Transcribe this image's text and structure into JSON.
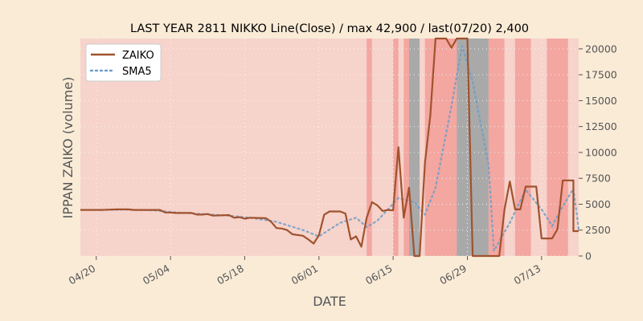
{
  "colors": {
    "background": "#faebd7",
    "zaiko": "#a0522d",
    "sma5": "#6c9ec8",
    "band_light": "#f6d3cb",
    "band_strong": "#f4a6a0",
    "band_gray": "#a9a9a9",
    "grid": "#ffffff",
    "axis_text": "#555555"
  },
  "chart_data": {
    "type": "line",
    "title": "LAST YEAR 2811 NIKKO Line(Close) / max 42,900 / last(07/20) 2,400",
    "xlabel": "DATE",
    "ylabel": "IPPAN ZAIKO (volume)",
    "x_start": "2023-04-17",
    "x_end": "2023-07-20",
    "ylim": [
      0,
      21000
    ],
    "y_ticks": [
      0,
      2500,
      5000,
      7500,
      10000,
      12500,
      15000,
      17500,
      20000
    ],
    "y_tick_labels": [
      "0",
      "2500",
      "5000",
      "7500",
      "10000",
      "12500",
      "15000",
      "17500",
      "20000"
    ],
    "x_ticks": [
      "2023-04-20",
      "2023-05-04",
      "2023-05-18",
      "2023-06-01",
      "2023-06-15",
      "2023-06-29",
      "2023-07-13"
    ],
    "x_tick_labels": [
      "04/20",
      "05/04",
      "05/18",
      "06/01",
      "06/15",
      "06/29",
      "07/13"
    ],
    "grid": true,
    "legend_position": "top-left",
    "series": [
      {
        "name": "ZAIKO",
        "style": "solid",
        "points": [
          [
            "2023-04-17",
            4450
          ],
          [
            "2023-04-18",
            4450
          ],
          [
            "2023-04-19",
            4450
          ],
          [
            "2023-04-20",
            4450
          ],
          [
            "2023-04-21",
            4450
          ],
          [
            "2023-04-24",
            4500
          ],
          [
            "2023-04-25",
            4500
          ],
          [
            "2023-04-26",
            4500
          ],
          [
            "2023-04-27",
            4450
          ],
          [
            "2023-04-28",
            4450
          ],
          [
            "2023-05-01",
            4450
          ],
          [
            "2023-05-02",
            4450
          ],
          [
            "2023-05-03",
            4200
          ],
          [
            "2023-05-04",
            4200
          ],
          [
            "2023-05-05",
            4150
          ],
          [
            "2023-05-08",
            4150
          ],
          [
            "2023-05-09",
            4000
          ],
          [
            "2023-05-10",
            4000
          ],
          [
            "2023-05-11",
            4050
          ],
          [
            "2023-05-12",
            3900
          ],
          [
            "2023-05-15",
            3950
          ],
          [
            "2023-05-16",
            3700
          ],
          [
            "2023-05-17",
            3750
          ],
          [
            "2023-05-18",
            3600
          ],
          [
            "2023-05-19",
            3700
          ],
          [
            "2023-05-22",
            3650
          ],
          [
            "2023-05-23",
            3300
          ],
          [
            "2023-05-24",
            2700
          ],
          [
            "2023-05-25",
            2650
          ],
          [
            "2023-05-26",
            2500
          ],
          [
            "2023-05-27",
            2100
          ],
          [
            "2023-05-29",
            1950
          ],
          [
            "2023-05-30",
            1600
          ],
          [
            "2023-05-31",
            1200
          ],
          [
            "2023-06-01",
            2000
          ],
          [
            "2023-06-02",
            4000
          ],
          [
            "2023-06-03",
            4300
          ],
          [
            "2023-06-05",
            4300
          ],
          [
            "2023-06-06",
            4100
          ],
          [
            "2023-06-07",
            1600
          ],
          [
            "2023-06-08",
            1900
          ],
          [
            "2023-06-09",
            900
          ],
          [
            "2023-06-10",
            3700
          ],
          [
            "2023-06-11",
            5200
          ],
          [
            "2023-06-12",
            4900
          ],
          [
            "2023-06-13",
            4350
          ],
          [
            "2023-06-14",
            4450
          ],
          [
            "2023-06-15",
            4400
          ],
          [
            "2023-06-16",
            10500
          ],
          [
            "2023-06-17",
            3700
          ],
          [
            "2023-06-18",
            6600
          ],
          [
            "2023-06-19",
            0
          ],
          [
            "2023-06-20",
            0
          ],
          [
            "2023-06-21",
            9000
          ],
          [
            "2023-06-22",
            13500
          ],
          [
            "2023-06-23",
            21000
          ],
          [
            "2023-06-25",
            21000
          ],
          [
            "2023-06-26",
            20100
          ],
          [
            "2023-06-27",
            21000
          ],
          [
            "2023-06-28",
            21000
          ],
          [
            "2023-06-29",
            21000
          ],
          [
            "2023-06-30",
            0
          ],
          [
            "2023-07-03",
            0
          ],
          [
            "2023-07-04",
            0
          ],
          [
            "2023-07-05",
            0
          ],
          [
            "2023-07-06",
            4500
          ],
          [
            "2023-07-07",
            7200
          ],
          [
            "2023-07-08",
            4500
          ],
          [
            "2023-07-09",
            4500
          ],
          [
            "2023-07-10",
            6700
          ],
          [
            "2023-07-11",
            6700
          ],
          [
            "2023-07-12",
            6700
          ],
          [
            "2023-07-13",
            1700
          ],
          [
            "2023-07-14",
            1700
          ],
          [
            "2023-07-15",
            1700
          ],
          [
            "2023-07-16",
            2600
          ],
          [
            "2023-07-17",
            7300
          ],
          [
            "2023-07-18",
            7300
          ],
          [
            "2023-07-19",
            7300
          ],
          [
            "2023-07-19",
            2400
          ],
          [
            "2023-07-20",
            2400
          ]
        ]
      },
      {
        "name": "SMA5",
        "style": "dotted",
        "points": [
          [
            "2023-04-21",
            4450
          ],
          [
            "2023-04-26",
            4480
          ],
          [
            "2023-05-01",
            4400
          ],
          [
            "2023-05-05",
            4200
          ],
          [
            "2023-05-10",
            4050
          ],
          [
            "2023-05-15",
            3900
          ],
          [
            "2023-05-19",
            3700
          ],
          [
            "2023-05-24",
            3300
          ],
          [
            "2023-05-29",
            2500
          ],
          [
            "2023-06-01",
            1900
          ],
          [
            "2023-06-05",
            3200
          ],
          [
            "2023-06-08",
            3700
          ],
          [
            "2023-06-10",
            2800
          ],
          [
            "2023-06-12",
            3400
          ],
          [
            "2023-06-16",
            5600
          ],
          [
            "2023-06-19",
            5200
          ],
          [
            "2023-06-21",
            4000
          ],
          [
            "2023-06-23",
            6600
          ],
          [
            "2023-06-26",
            14500
          ],
          [
            "2023-06-28",
            20300
          ],
          [
            "2023-06-30",
            16800
          ],
          [
            "2023-07-03",
            8800
          ],
          [
            "2023-07-04",
            500
          ],
          [
            "2023-07-07",
            3200
          ],
          [
            "2023-07-10",
            6400
          ],
          [
            "2023-07-13",
            4500
          ],
          [
            "2023-07-15",
            2900
          ],
          [
            "2023-07-17",
            4800
          ],
          [
            "2023-07-19",
            6500
          ],
          [
            "2023-07-20",
            2600
          ]
        ]
      }
    ],
    "bands": [
      {
        "start": "2023-04-17",
        "end": "2023-06-10",
        "tone": "light"
      },
      {
        "start": "2023-06-10",
        "end": "2023-06-11",
        "tone": "strong"
      },
      {
        "start": "2023-06-11",
        "end": "2023-06-15",
        "tone": "light"
      },
      {
        "start": "2023-06-15",
        "end": "2023-06-16",
        "tone": "strong"
      },
      {
        "start": "2023-06-16",
        "end": "2023-06-17",
        "tone": "light"
      },
      {
        "start": "2023-06-17",
        "end": "2023-06-18",
        "tone": "strong"
      },
      {
        "start": "2023-06-18",
        "end": "2023-06-20",
        "tone": "gray"
      },
      {
        "start": "2023-06-20",
        "end": "2023-06-21",
        "tone": "light"
      },
      {
        "start": "2023-06-21",
        "end": "2023-06-27",
        "tone": "strong"
      },
      {
        "start": "2023-06-27",
        "end": "2023-07-03",
        "tone": "gray"
      },
      {
        "start": "2023-07-03",
        "end": "2023-07-06",
        "tone": "strong"
      },
      {
        "start": "2023-07-06",
        "end": "2023-07-08",
        "tone": "light"
      },
      {
        "start": "2023-07-08",
        "end": "2023-07-11",
        "tone": "strong"
      },
      {
        "start": "2023-07-11",
        "end": "2023-07-14",
        "tone": "light"
      },
      {
        "start": "2023-07-14",
        "end": "2023-07-18",
        "tone": "strong"
      },
      {
        "start": "2023-07-18",
        "end": "2023-07-20",
        "tone": "light"
      }
    ]
  }
}
